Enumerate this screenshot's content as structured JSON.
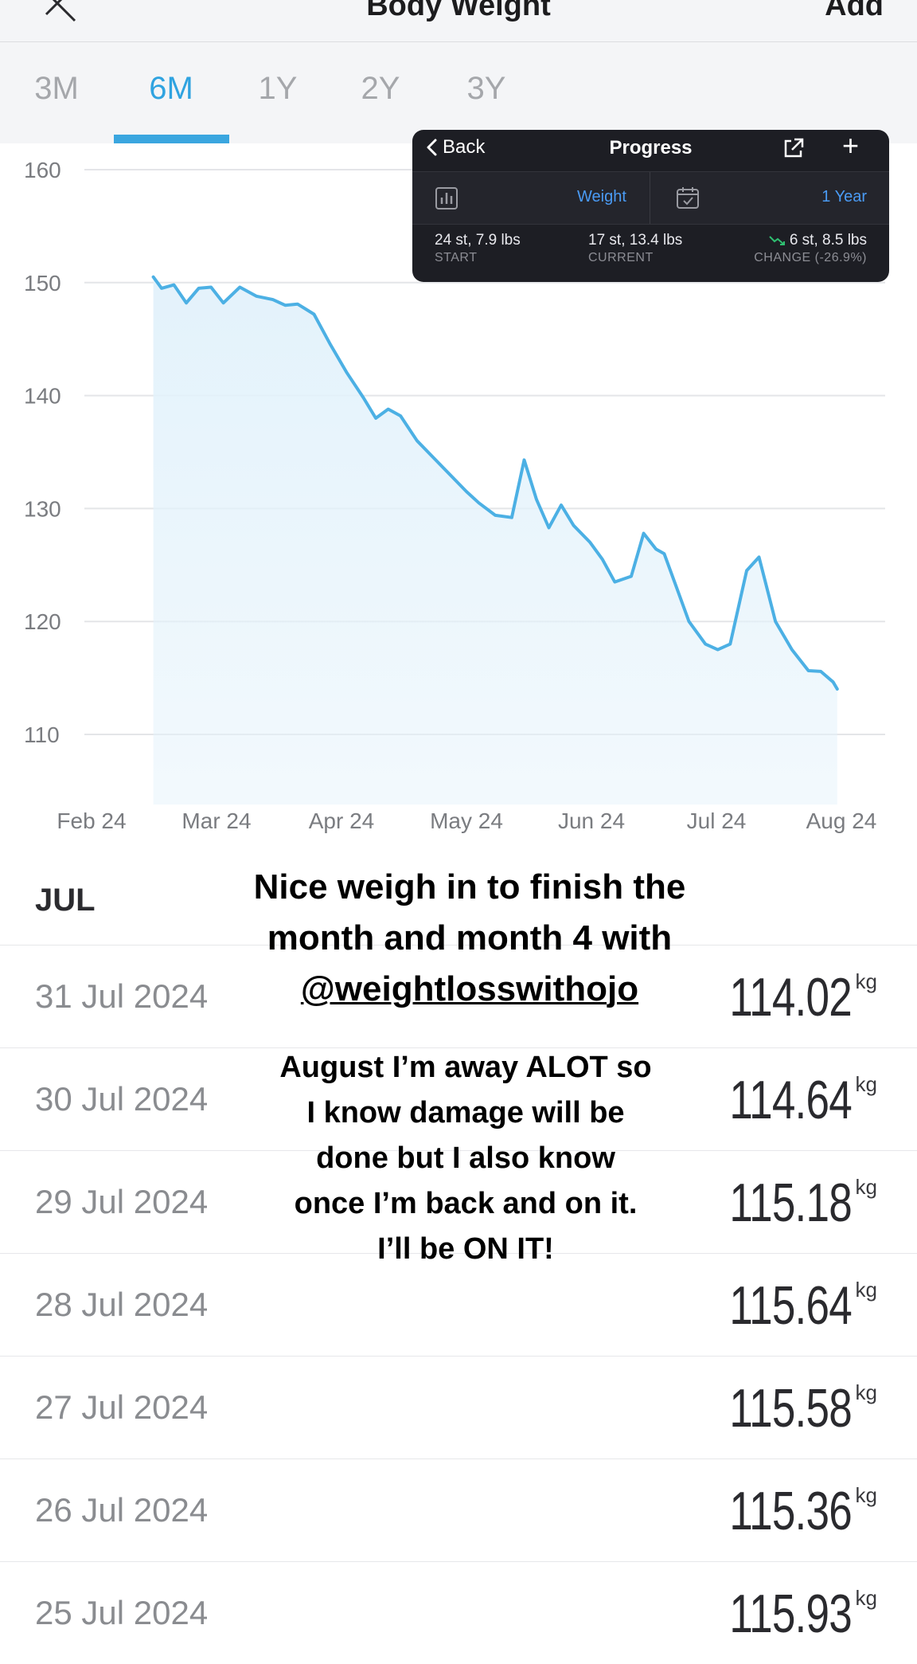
{
  "header": {
    "title": "Body Weight",
    "add_label": "Add"
  },
  "tabs": [
    {
      "label": "3M",
      "active": false
    },
    {
      "label": "6M",
      "active": true
    },
    {
      "label": "1Y",
      "active": false
    },
    {
      "label": "2Y",
      "active": false
    },
    {
      "label": "3Y",
      "active": false
    }
  ],
  "progress_card": {
    "back_label": "Back",
    "title": "Progress",
    "metric_label": "Weight",
    "range_label": "1 Year",
    "start": {
      "value": "24 st, 7.9 lbs",
      "label": "START"
    },
    "current": {
      "value": "17 st, 13.4 lbs",
      "label": "CURRENT"
    },
    "change": {
      "value": "6 st, 8.5 lbs",
      "label": "CHANGE (-26.9%)"
    },
    "accent_color": "#4a9bf5",
    "trend_color": "#2fbf71"
  },
  "chart_data": {
    "type": "area",
    "y_ticks": [
      160,
      150,
      140,
      130,
      120,
      110
    ],
    "x_ticks": [
      "Feb 24",
      "Mar 24",
      "Apr 24",
      "May 24",
      "Jun 24",
      "Jul 24",
      "Aug 24"
    ],
    "ylim": [
      104,
      160
    ],
    "line_color": "#4cb0e4",
    "fill_color": "#e3f2fb",
    "series": [
      {
        "x": [
          "2024-02-16",
          "2024-02-18",
          "2024-02-21",
          "2024-02-24",
          "2024-02-27",
          "2024-03-01",
          "2024-03-04",
          "2024-03-08",
          "2024-03-12",
          "2024-03-16",
          "2024-03-19",
          "2024-03-22",
          "2024-03-26",
          "2024-03-30",
          "2024-04-03",
          "2024-04-07",
          "2024-04-10",
          "2024-04-13",
          "2024-04-16",
          "2024-04-20",
          "2024-04-24",
          "2024-04-28",
          "2024-05-02",
          "2024-05-05",
          "2024-05-09",
          "2024-05-13",
          "2024-05-16",
          "2024-05-19",
          "2024-05-22",
          "2024-05-25",
          "2024-05-28",
          "2024-06-01",
          "2024-06-04",
          "2024-06-07",
          "2024-06-11",
          "2024-06-14",
          "2024-06-17",
          "2024-06-19",
          "2024-06-22",
          "2024-06-25",
          "2024-06-29",
          "2024-07-02",
          "2024-07-05",
          "2024-07-09",
          "2024-07-12",
          "2024-07-16",
          "2024-07-20",
          "2024-07-24",
          "2024-07-27",
          "2024-07-30",
          "2024-07-31"
        ],
        "y": [
          150.5,
          149.5,
          149.8,
          148.2,
          149.5,
          149.6,
          148.2,
          149.6,
          148.8,
          148.5,
          148.0,
          148.1,
          147.2,
          144.5,
          142.0,
          139.8,
          138.0,
          138.8,
          138.2,
          136.0,
          134.5,
          133.0,
          131.5,
          130.5,
          129.4,
          129.2,
          134.3,
          130.8,
          128.3,
          130.3,
          128.5,
          127.0,
          125.5,
          123.5,
          124.0,
          127.8,
          126.4,
          126.0,
          123.0,
          120.0,
          118.0,
          117.5,
          118.0,
          124.5,
          125.7,
          120.0,
          117.5,
          115.64,
          115.58,
          114.64,
          114.02
        ]
      }
    ]
  },
  "list": {
    "section_label": "JUL",
    "unit": "kg",
    "entries": [
      {
        "date": "31 Jul 2024",
        "value": "114.02"
      },
      {
        "date": "30 Jul 2024",
        "value": "114.64"
      },
      {
        "date": "29 Jul 2024",
        "value": "115.18"
      },
      {
        "date": "28 Jul 2024",
        "value": "115.64"
      },
      {
        "date": "27 Jul 2024",
        "value": "115.58"
      },
      {
        "date": "26 Jul 2024",
        "value": "115.36"
      },
      {
        "date": "25 Jul 2024",
        "value": "115.93"
      }
    ]
  },
  "caption": {
    "line1": "Nice weigh in to finish the",
    "line2": "month and month 4 with",
    "handle": "@weightlosswithojo",
    "body": [
      "August I’m away ALOT so",
      "I know damage will be",
      "done but I also know",
      "once I’m back and on it.",
      "I’ll be ON IT!"
    ]
  }
}
